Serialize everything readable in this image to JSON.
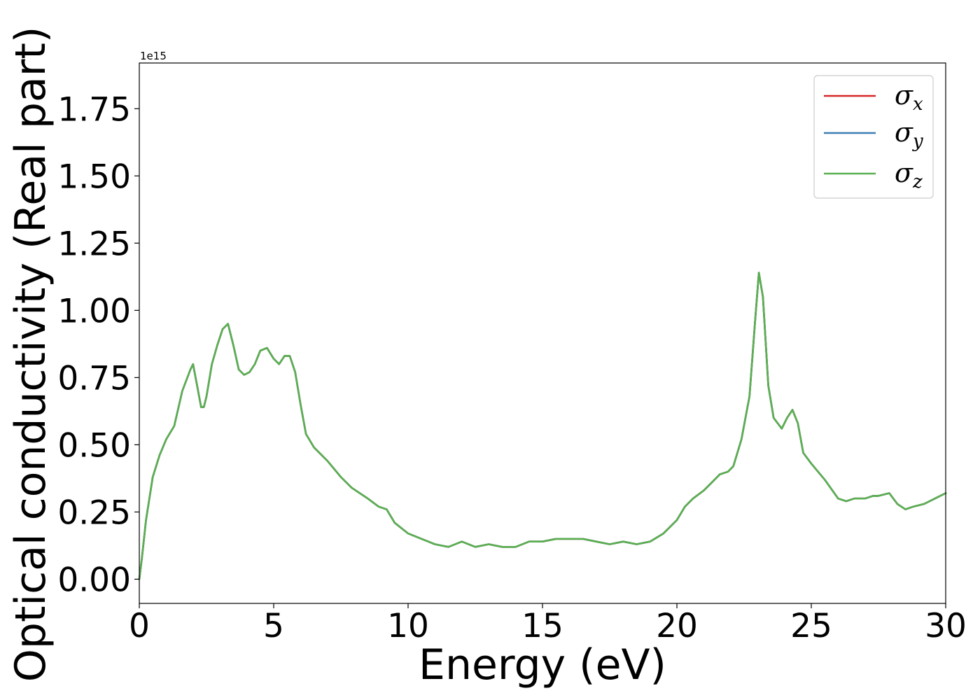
{
  "chart_data": {
    "type": "line",
    "title": "",
    "xlabel": "Energy (eV)",
    "ylabel": "Optical conductivity (Real part)",
    "y_offset_label": "1e15",
    "xlim": [
      0,
      30
    ],
    "ylim": [
      -0.09,
      1.92
    ],
    "x_ticks": [
      0,
      5,
      10,
      15,
      20,
      25,
      30
    ],
    "x_tick_labels": [
      "0",
      "5",
      "10",
      "15",
      "20",
      "25",
      "30"
    ],
    "y_ticks": [
      0.0,
      0.25,
      0.5,
      0.75,
      1.0,
      1.25,
      1.5,
      1.75
    ],
    "y_tick_labels": [
      "0.00",
      "0.25",
      "0.50",
      "0.75",
      "1.00",
      "1.25",
      "1.50",
      "1.75"
    ],
    "grid": false,
    "legend_position": "top-right",
    "series": [
      {
        "name": "σ",
        "subscript": "x",
        "color": "#d62728"
      },
      {
        "name": "σ",
        "subscript": "y",
        "color": "#3f7fb5"
      },
      {
        "name": "σ",
        "subscript": "z",
        "color": "#5aaf50"
      }
    ],
    "x": [
      0,
      0.1,
      0.25,
      0.5,
      0.75,
      1.0,
      1.3,
      1.6,
      1.9,
      2.0,
      2.15,
      2.3,
      2.4,
      2.5,
      2.7,
      2.9,
      3.1,
      3.3,
      3.5,
      3.7,
      3.9,
      4.1,
      4.3,
      4.5,
      4.75,
      5.0,
      5.2,
      5.4,
      5.6,
      5.8,
      6.0,
      6.2,
      6.5,
      7.0,
      7.5,
      7.9,
      8.2,
      8.5,
      8.9,
      9.2,
      9.5,
      10.0,
      10.5,
      11.0,
      11.5,
      12.0,
      12.5,
      13.0,
      13.5,
      14.0,
      14.5,
      15.0,
      15.5,
      16.0,
      16.5,
      17.0,
      17.5,
      18.0,
      18.5,
      19.0,
      19.5,
      20.0,
      20.3,
      20.6,
      21.0,
      21.3,
      21.6,
      21.9,
      22.1,
      22.4,
      22.7,
      22.9,
      23.05,
      23.2,
      23.4,
      23.6,
      23.9,
      24.1,
      24.3,
      24.5,
      24.7,
      25.0,
      25.5,
      26.0,
      26.3,
      26.6,
      27.0,
      27.3,
      27.5,
      27.9,
      28.2,
      28.5,
      28.8,
      29.2,
      29.6,
      30.0
    ],
    "values": [
      0.0,
      0.08,
      0.22,
      0.38,
      0.46,
      0.52,
      0.57,
      0.7,
      0.78,
      0.8,
      0.72,
      0.64,
      0.64,
      0.68,
      0.8,
      0.87,
      0.93,
      0.95,
      0.87,
      0.78,
      0.76,
      0.77,
      0.8,
      0.85,
      0.86,
      0.82,
      0.8,
      0.83,
      0.83,
      0.77,
      0.65,
      0.54,
      0.49,
      0.44,
      0.38,
      0.34,
      0.32,
      0.3,
      0.27,
      0.26,
      0.21,
      0.17,
      0.15,
      0.13,
      0.12,
      0.14,
      0.12,
      0.13,
      0.12,
      0.12,
      0.14,
      0.14,
      0.15,
      0.15,
      0.15,
      0.14,
      0.13,
      0.14,
      0.13,
      0.14,
      0.17,
      0.22,
      0.27,
      0.3,
      0.33,
      0.36,
      0.39,
      0.4,
      0.42,
      0.52,
      0.68,
      0.95,
      1.14,
      1.05,
      0.72,
      0.6,
      0.56,
      0.6,
      0.63,
      0.58,
      0.47,
      0.43,
      0.37,
      0.3,
      0.29,
      0.3,
      0.3,
      0.31,
      0.31,
      0.32,
      0.28,
      0.26,
      0.27,
      0.28,
      0.3,
      0.32
    ]
  }
}
